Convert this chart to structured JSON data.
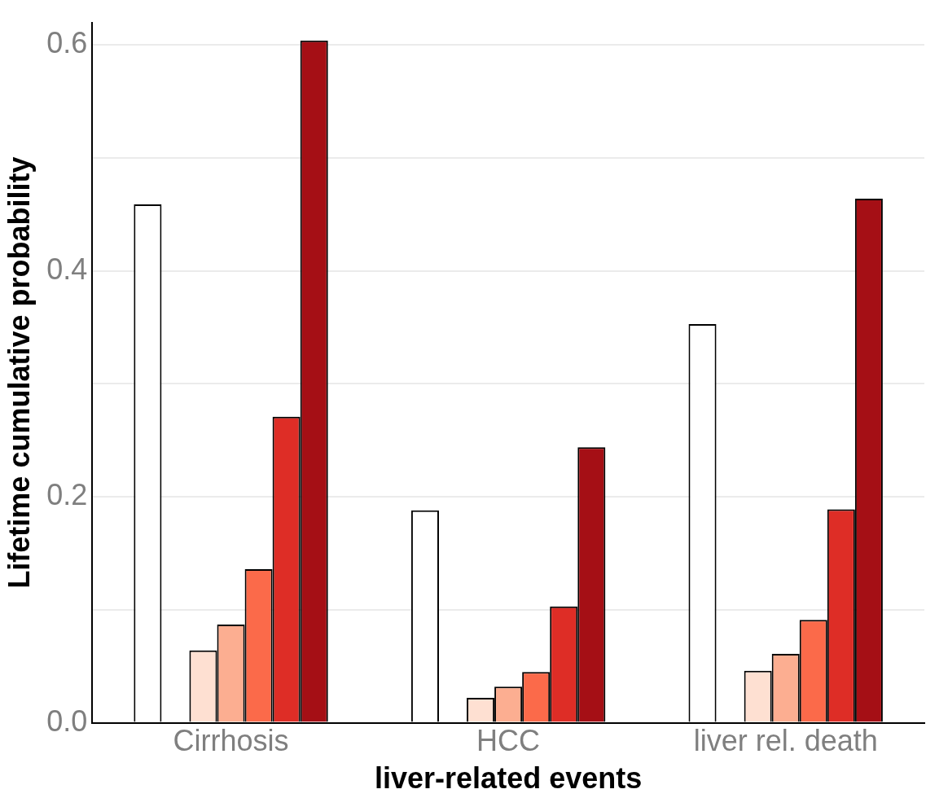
{
  "chart_data": {
    "type": "bar",
    "xlabel": "liver-related events",
    "ylabel": "Lifetime cumulative probability",
    "categories": [
      "Cirrhosis",
      "HCC",
      "liver rel. death"
    ],
    "series": [
      {
        "color": "#ffffff",
        "values": [
          0.459,
          0.188,
          0.353
        ]
      },
      {
        "color": "#ffffff",
        "values": [
          null,
          null,
          null
        ]
      },
      {
        "color": "#fee0d2",
        "values": [
          0.064,
          0.022,
          0.046
        ]
      },
      {
        "color": "#fcae91",
        "values": [
          0.087,
          0.032,
          0.061
        ]
      },
      {
        "color": "#fb6a4a",
        "values": [
          0.136,
          0.045,
          0.091
        ]
      },
      {
        "color": "#de2d26",
        "values": [
          0.271,
          0.103,
          0.189
        ]
      },
      {
        "color": "#a50f15",
        "values": [
          0.604,
          0.244,
          0.464
        ]
      }
    ],
    "ylim": [
      0,
      0.62
    ],
    "yticks": [
      {
        "value": 0,
        "label": "0.0"
      },
      {
        "value": 0.1,
        "label": null
      },
      {
        "value": 0.2,
        "label": "0.2"
      },
      {
        "value": 0.3,
        "label": null
      },
      {
        "value": 0.4,
        "label": "0.4"
      },
      {
        "value": 0.5,
        "label": null
      },
      {
        "value": 0.6,
        "label": "0.6"
      }
    ],
    "grid": "y",
    "legend": false
  }
}
